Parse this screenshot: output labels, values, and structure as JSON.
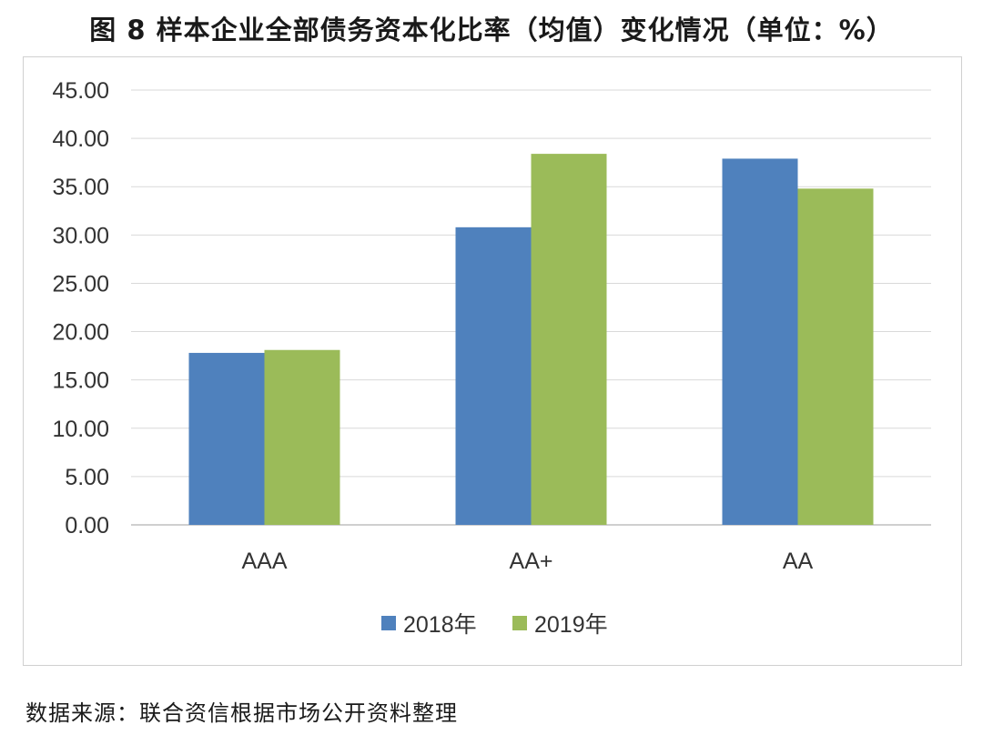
{
  "title": "图 8  样本企业全部债务资本化比率（均值）变化情况（单位：%）",
  "source": "数据来源：联合资信根据市场公开资料整理",
  "chart_data": {
    "type": "bar",
    "categories": [
      "AAA",
      "AA+",
      "AA"
    ],
    "series": [
      {
        "name": "2018年",
        "values": [
          17.8,
          30.8,
          37.9
        ],
        "color": "#4f81bd"
      },
      {
        "name": "2019年",
        "values": [
          18.1,
          38.4,
          34.8
        ],
        "color": "#9bbb59"
      }
    ],
    "ylim": [
      0,
      45
    ],
    "yticks": [
      "0.00",
      "5.00",
      "10.00",
      "15.00",
      "20.00",
      "25.00",
      "30.00",
      "35.00",
      "40.00",
      "45.00"
    ],
    "grid": true,
    "legend": "bottom",
    "title": "",
    "xlabel": "",
    "ylabel": ""
  }
}
